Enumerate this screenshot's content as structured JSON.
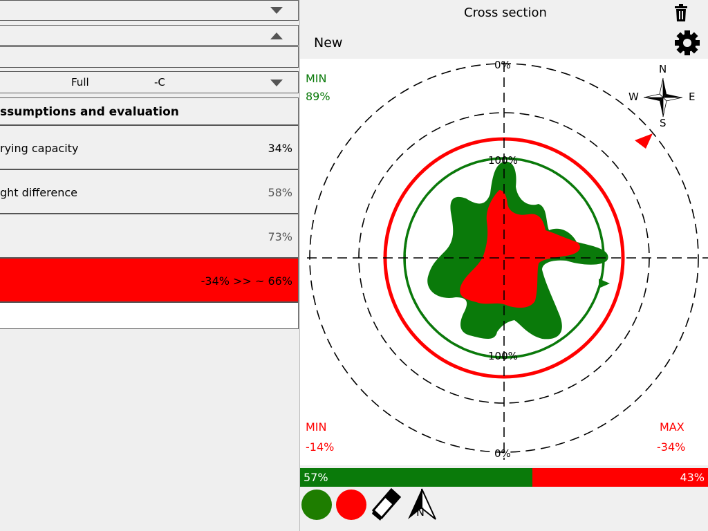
{
  "left_panel": {
    "rows": [
      {
        "label": ""
      },
      {
        "label": ""
      },
      {
        "label": ""
      }
    ],
    "selector": {
      "col1": "Full",
      "col2": "-C"
    },
    "section_title": "ssumptions and evaluation",
    "items": [
      {
        "label": "rying capacity",
        "value": "34%"
      },
      {
        "label": "ght difference",
        "value": "58%"
      },
      {
        "label": "",
        "value": "73%"
      }
    ],
    "result": {
      "text": "-34%  >>  ~ 66%"
    }
  },
  "right_panel": {
    "title": "Cross section",
    "subtitle": "New",
    "plot": {
      "min_green_label": "MIN",
      "min_green_value": "89%",
      "min_red_label": "MIN",
      "min_red_value": "-14%",
      "max_red_label": "MAX",
      "max_red_value": "-34%",
      "top_pct": "0%",
      "bottom_pct": "0%",
      "inner_top_pct": "100%",
      "inner_bottom_pct": "100%",
      "compass": {
        "n": "N",
        "s": "S",
        "e": "E",
        "w": "W"
      }
    },
    "bar": {
      "green_value": 57,
      "green_text": "57%",
      "red_text": "43%"
    },
    "toolbar": {
      "north_label": "N"
    }
  },
  "colors": {
    "green": "#0a7a0a",
    "red": "#ff0000",
    "dark_green": "#1e7d00"
  }
}
